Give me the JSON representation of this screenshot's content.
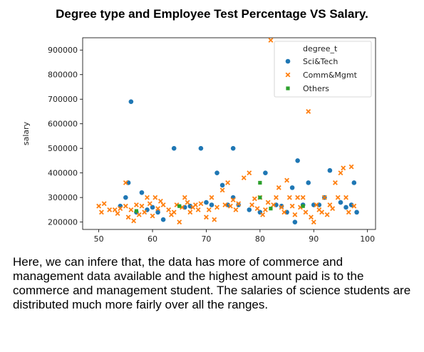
{
  "page": {
    "title": "Degree type and Employee Test Percentage VS Salary.",
    "caption": "Here, we can infere that, the data has more of commerce and management data available and the highest amount paid is to the commerce and management student. The salaries of science students are distributed much more fairly over all the ranges."
  },
  "chart_data": {
    "type": "scatter",
    "title": "",
    "xlabel": "",
    "ylabel": "salary",
    "xlim": [
      47,
      101.5
    ],
    "ylim": [
      170000,
      950000
    ],
    "xticks": [
      50,
      60,
      70,
      80,
      90,
      100
    ],
    "yticks": [
      200000,
      300000,
      400000,
      500000,
      600000,
      700000,
      800000,
      900000
    ],
    "grid": false,
    "legend": {
      "title": "degree_t",
      "placement": "top-right"
    },
    "series": [
      {
        "name": "Sci&Tech",
        "color": "#1f77b4",
        "marker": "circle",
        "points": [
          [
            55,
            300000
          ],
          [
            55.5,
            360000
          ],
          [
            56,
            690000
          ],
          [
            58,
            320000
          ],
          [
            59,
            250000
          ],
          [
            60,
            260000
          ],
          [
            61,
            240000
          ],
          [
            62,
            210000
          ],
          [
            64,
            500000
          ],
          [
            66,
            260000
          ],
          [
            67,
            265000
          ],
          [
            69,
            500000
          ],
          [
            70,
            280000
          ],
          [
            71,
            270000
          ],
          [
            72,
            400000
          ],
          [
            73,
            350000
          ],
          [
            74,
            270000
          ],
          [
            75,
            500000
          ],
          [
            75,
            300000
          ],
          [
            76,
            270000
          ],
          [
            78,
            250000
          ],
          [
            80,
            240000
          ],
          [
            81,
            400000
          ],
          [
            83,
            270000
          ],
          [
            85,
            240000
          ],
          [
            86,
            340000
          ],
          [
            86.5,
            200000
          ],
          [
            87,
            450000
          ],
          [
            88,
            270000
          ],
          [
            89,
            360000
          ],
          [
            93,
            410000
          ],
          [
            95,
            280000
          ],
          [
            96,
            260000
          ],
          [
            97,
            270000
          ],
          [
            97.5,
            360000
          ],
          [
            98,
            240000
          ],
          [
            54,
            265000
          ],
          [
            57,
            240000
          ],
          [
            84,
            265000
          ],
          [
            90,
            270000
          ],
          [
            91,
            270000
          ],
          [
            92,
            300000
          ]
        ]
      },
      {
        "name": "Comm&Mgmt",
        "color": "#ff7f0e",
        "marker": "x",
        "points": [
          [
            50,
            265000
          ],
          [
            50.5,
            240000
          ],
          [
            51,
            275000
          ],
          [
            52,
            250000
          ],
          [
            53,
            250000
          ],
          [
            53.5,
            235000
          ],
          [
            54,
            255000
          ],
          [
            55,
            360000
          ],
          [
            55,
            265000
          ],
          [
            55.5,
            220000
          ],
          [
            56,
            250000
          ],
          [
            56.5,
            205000
          ],
          [
            57,
            270000
          ],
          [
            57.5,
            230000
          ],
          [
            58,
            265000
          ],
          [
            58.5,
            240000
          ],
          [
            59,
            300000
          ],
          [
            59.5,
            275000
          ],
          [
            60,
            225000
          ],
          [
            60.5,
            300000
          ],
          [
            61,
            255000
          ],
          [
            61.5,
            285000
          ],
          [
            62,
            270000
          ],
          [
            63,
            250000
          ],
          [
            63.5,
            230000
          ],
          [
            64,
            240000
          ],
          [
            64.5,
            270000
          ],
          [
            65,
            200000
          ],
          [
            65.5,
            260000
          ],
          [
            66,
            300000
          ],
          [
            66.5,
            280000
          ],
          [
            67,
            240000
          ],
          [
            67.5,
            260000
          ],
          [
            68,
            270000
          ],
          [
            68.5,
            250000
          ],
          [
            69,
            275000
          ],
          [
            70,
            220000
          ],
          [
            70.5,
            250000
          ],
          [
            71,
            300000
          ],
          [
            71.5,
            210000
          ],
          [
            72,
            260000
          ],
          [
            73,
            330000
          ],
          [
            73.5,
            270000
          ],
          [
            74,
            360000
          ],
          [
            74.5,
            265000
          ],
          [
            75,
            290000
          ],
          [
            75.5,
            250000
          ],
          [
            76,
            275000
          ],
          [
            77,
            380000
          ],
          [
            78,
            400000
          ],
          [
            78.5,
            270000
          ],
          [
            79,
            295000
          ],
          [
            79.5,
            255000
          ],
          [
            80,
            300000
          ],
          [
            80.5,
            230000
          ],
          [
            81,
            250000
          ],
          [
            81.5,
            280000
          ],
          [
            82,
            940000
          ],
          [
            82.5,
            270000
          ],
          [
            83,
            300000
          ],
          [
            83.5,
            340000
          ],
          [
            84,
            260000
          ],
          [
            84.5,
            240000
          ],
          [
            85,
            370000
          ],
          [
            85.5,
            300000
          ],
          [
            86,
            265000
          ],
          [
            86.5,
            230000
          ],
          [
            87,
            300000
          ],
          [
            87.5,
            260000
          ],
          [
            88,
            300000
          ],
          [
            88.5,
            240000
          ],
          [
            89,
            650000
          ],
          [
            89.5,
            220000
          ],
          [
            90,
            200000
          ],
          [
            90.5,
            270000
          ],
          [
            91,
            250000
          ],
          [
            91.5,
            240000
          ],
          [
            92,
            300000
          ],
          [
            92.5,
            230000
          ],
          [
            93,
            270000
          ],
          [
            93.5,
            255000
          ],
          [
            94,
            360000
          ],
          [
            94.5,
            300000
          ],
          [
            95,
            400000
          ],
          [
            95.5,
            420000
          ],
          [
            96,
            300000
          ],
          [
            96.5,
            240000
          ],
          [
            97,
            425000
          ],
          [
            97.5,
            265000
          ]
        ]
      },
      {
        "name": "Others",
        "color": "#2ca02c",
        "marker": "square",
        "points": [
          [
            57,
            245000
          ],
          [
            65,
            265000
          ],
          [
            80,
            360000
          ],
          [
            80,
            300000
          ],
          [
            82,
            255000
          ],
          [
            88,
            265000
          ]
        ]
      }
    ]
  }
}
